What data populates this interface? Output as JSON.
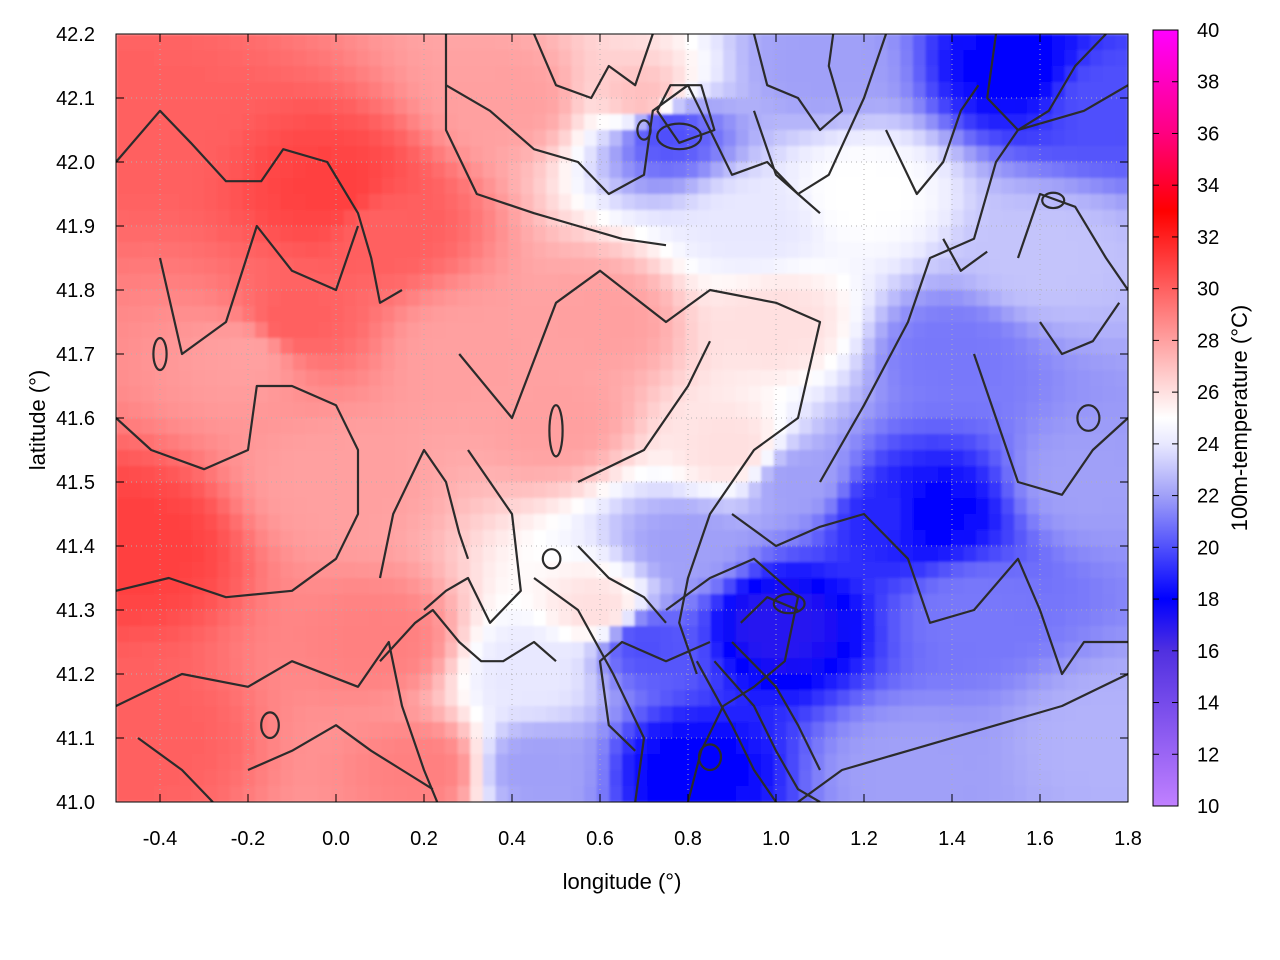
{
  "chart_data": {
    "type": "heatmap",
    "title": "",
    "xlabel": "longitude (°)",
    "ylabel": "latitude (°)",
    "colorbar_label": "100m-temperature (°C)",
    "xlim": [
      -0.5,
      1.8
    ],
    "ylim": [
      41.0,
      42.2
    ],
    "x_ticks": [
      "-0.4",
      "-0.2",
      "0.0",
      "0.2",
      "0.4",
      "0.6",
      "0.8",
      "1.0",
      "1.2",
      "1.4",
      "1.6",
      "1.8"
    ],
    "y_ticks": [
      "41.0",
      "41.1",
      "41.2",
      "41.3",
      "41.4",
      "41.5",
      "41.6",
      "41.7",
      "41.8",
      "41.9",
      "42.0",
      "42.1",
      "42.2"
    ],
    "colorbar_range": [
      10,
      40
    ],
    "colorbar_ticks": [
      "10",
      "12",
      "14",
      "16",
      "18",
      "20",
      "22",
      "24",
      "26",
      "28",
      "30",
      "32",
      "34",
      "36",
      "38",
      "40"
    ],
    "colormap": [
      {
        "value": 10,
        "color": "#c080ff"
      },
      {
        "value": 16,
        "color": "#5030e0"
      },
      {
        "value": 18,
        "color": "#0000ff"
      },
      {
        "value": 22,
        "color": "#a0a0f8"
      },
      {
        "value": 24,
        "color": "#e8e8ff"
      },
      {
        "value": 25,
        "color": "#ffffff"
      },
      {
        "value": 27,
        "color": "#ffc0c0"
      },
      {
        "value": 30,
        "color": "#ff6060"
      },
      {
        "value": 33,
        "color": "#ff0000"
      },
      {
        "value": 36,
        "color": "#ff0080"
      },
      {
        "value": 40,
        "color": "#ff00ff"
      }
    ],
    "temperature_anchors": [
      {
        "lon": -0.45,
        "lat": 42.05,
        "t": 30
      },
      {
        "lon": -0.45,
        "lat": 41.4,
        "t": 31
      },
      {
        "lon": -0.45,
        "lat": 41.1,
        "t": 30
      },
      {
        "lon": -0.2,
        "lat": 41.7,
        "t": 28
      },
      {
        "lon": -0.1,
        "lat": 41.75,
        "t": 30
      },
      {
        "lon": 0.0,
        "lat": 41.95,
        "t": 31
      },
      {
        "lon": 0.1,
        "lat": 41.9,
        "t": 30
      },
      {
        "lon": 0.0,
        "lat": 41.5,
        "t": 28
      },
      {
        "lon": 0.1,
        "lat": 41.25,
        "t": 29
      },
      {
        "lon": 0.2,
        "lat": 41.05,
        "t": 29
      },
      {
        "lon": 0.3,
        "lat": 41.7,
        "t": 28
      },
      {
        "lon": 0.4,
        "lat": 42.1,
        "t": 28
      },
      {
        "lon": 0.5,
        "lat": 41.6,
        "t": 28
      },
      {
        "lon": 0.45,
        "lat": 41.2,
        "t": 24
      },
      {
        "lon": 0.45,
        "lat": 41.05,
        "t": 22
      },
      {
        "lon": 0.6,
        "lat": 41.75,
        "t": 28
      },
      {
        "lon": 0.7,
        "lat": 42.1,
        "t": 27
      },
      {
        "lon": 0.75,
        "lat": 42.05,
        "t": 20
      },
      {
        "lon": 0.6,
        "lat": 41.3,
        "t": 26
      },
      {
        "lon": 0.7,
        "lat": 41.25,
        "t": 20
      },
      {
        "lon": 0.8,
        "lat": 41.4,
        "t": 22
      },
      {
        "lon": 0.8,
        "lat": 41.05,
        "t": 18
      },
      {
        "lon": 0.9,
        "lat": 41.55,
        "t": 26
      },
      {
        "lon": 0.95,
        "lat": 41.9,
        "t": 24
      },
      {
        "lon": 1.0,
        "lat": 41.28,
        "t": 17
      },
      {
        "lon": 1.0,
        "lat": 41.75,
        "t": 26
      },
      {
        "lon": 1.05,
        "lat": 41.5,
        "t": 22
      },
      {
        "lon": 1.1,
        "lat": 42.15,
        "t": 22
      },
      {
        "lon": 1.2,
        "lat": 41.95,
        "t": 25
      },
      {
        "lon": 1.25,
        "lat": 41.45,
        "t": 19
      },
      {
        "lon": 1.3,
        "lat": 41.05,
        "t": 22
      },
      {
        "lon": 1.35,
        "lat": 41.45,
        "t": 18
      },
      {
        "lon": 1.4,
        "lat": 41.7,
        "t": 21
      },
      {
        "lon": 1.45,
        "lat": 41.3,
        "t": 21
      },
      {
        "lon": 1.55,
        "lat": 42.15,
        "t": 18
      },
      {
        "lon": 1.6,
        "lat": 41.85,
        "t": 23
      },
      {
        "lon": 1.7,
        "lat": 41.5,
        "t": 22
      },
      {
        "lon": 1.75,
        "lat": 41.1,
        "t": 22.5
      },
      {
        "lon": 1.75,
        "lat": 42.1,
        "t": 20
      }
    ],
    "contours": [
      [
        [
          -0.5,
          42.0
        ],
        [
          -0.4,
          42.08
        ],
        [
          -0.33,
          42.03
        ],
        [
          -0.25,
          41.97
        ],
        [
          -0.17,
          41.97
        ],
        [
          -0.12,
          42.02
        ],
        [
          -0.02,
          42.0
        ],
        [
          0.05,
          41.92
        ],
        [
          0.08,
          41.85
        ],
        [
          0.1,
          41.78
        ],
        [
          0.15,
          41.8
        ]
      ],
      [
        [
          -0.5,
          41.6
        ],
        [
          -0.42,
          41.55
        ],
        [
          -0.3,
          41.52
        ],
        [
          -0.2,
          41.55
        ],
        [
          -0.18,
          41.65
        ],
        [
          -0.1,
          41.65
        ],
        [
          0.0,
          41.62
        ],
        [
          0.05,
          41.55
        ],
        [
          0.05,
          41.45
        ],
        [
          0.0,
          41.38
        ],
        [
          -0.1,
          41.33
        ],
        [
          -0.25,
          41.32
        ],
        [
          -0.38,
          41.35
        ],
        [
          -0.5,
          41.33
        ]
      ],
      [
        [
          -0.4,
          41.85
        ],
        [
          -0.35,
          41.7
        ],
        [
          -0.25,
          41.75
        ],
        [
          -0.18,
          41.9
        ],
        [
          -0.1,
          41.83
        ],
        [
          0.0,
          41.8
        ],
        [
          0.05,
          41.9
        ]
      ],
      [
        [
          -0.5,
          41.15
        ],
        [
          -0.35,
          41.2
        ],
        [
          -0.2,
          41.18
        ],
        [
          -0.1,
          41.22
        ],
        [
          0.05,
          41.18
        ],
        [
          0.12,
          41.25
        ],
        [
          0.15,
          41.15
        ],
        [
          0.2,
          41.05
        ],
        [
          0.23,
          41.0
        ]
      ],
      [
        [
          0.25,
          42.2
        ],
        [
          0.25,
          42.05
        ],
        [
          0.32,
          41.95
        ],
        [
          0.45,
          41.92
        ],
        [
          0.55,
          41.9
        ],
        [
          0.65,
          41.88
        ],
        [
          0.75,
          41.87
        ]
      ],
      [
        [
          0.28,
          41.7
        ],
        [
          0.4,
          41.6
        ],
        [
          0.5,
          41.78
        ],
        [
          0.6,
          41.83
        ],
        [
          0.75,
          41.75
        ],
        [
          0.85,
          41.8
        ],
        [
          1.0,
          41.78
        ],
        [
          1.1,
          41.75
        ],
        [
          1.05,
          41.6
        ],
        [
          0.95,
          41.55
        ],
        [
          0.85,
          41.45
        ],
        [
          0.8,
          41.35
        ],
        [
          0.78,
          41.28
        ],
        [
          0.82,
          41.2
        ]
      ],
      [
        [
          0.3,
          41.55
        ],
        [
          0.4,
          41.45
        ],
        [
          0.42,
          41.33
        ],
        [
          0.35,
          41.28
        ],
        [
          0.3,
          41.35
        ],
        [
          0.25,
          41.33
        ],
        [
          0.2,
          41.3
        ]
      ],
      [
        [
          0.45,
          41.35
        ],
        [
          0.55,
          41.3
        ],
        [
          0.63,
          41.2
        ],
        [
          0.7,
          41.1
        ],
        [
          0.68,
          41.0
        ]
      ],
      [
        [
          0.55,
          41.5
        ],
        [
          0.7,
          41.55
        ],
        [
          0.8,
          41.65
        ],
        [
          0.85,
          41.72
        ]
      ],
      [
        [
          0.9,
          41.45
        ],
        [
          1.0,
          41.4
        ],
        [
          1.1,
          41.43
        ],
        [
          1.2,
          41.45
        ],
        [
          1.3,
          41.38
        ],
        [
          1.35,
          41.28
        ],
        [
          1.45,
          41.3
        ],
        [
          1.55,
          41.38
        ],
        [
          1.6,
          41.3
        ],
        [
          1.65,
          41.2
        ],
        [
          1.7,
          41.25
        ],
        [
          1.8,
          41.25
        ]
      ],
      [
        [
          0.75,
          41.3
        ],
        [
          0.85,
          41.35
        ],
        [
          0.95,
          41.38
        ],
        [
          1.05,
          41.32
        ],
        [
          1.02,
          41.22
        ],
        [
          0.95,
          41.18
        ],
        [
          0.88,
          41.15
        ],
        [
          0.83,
          41.08
        ],
        [
          0.8,
          41.0
        ]
      ],
      [
        [
          0.92,
          41.28
        ],
        [
          0.98,
          41.32
        ],
        [
          1.05,
          41.3
        ]
      ],
      [
        [
          0.82,
          41.22
        ],
        [
          0.9,
          41.12
        ],
        [
          0.95,
          41.05
        ],
        [
          1.0,
          41.0
        ]
      ],
      [
        [
          0.86,
          41.22
        ],
        [
          0.95,
          41.15
        ],
        [
          1.0,
          41.08
        ],
        [
          1.05,
          41.02
        ],
        [
          1.1,
          41.0
        ]
      ],
      [
        [
          0.9,
          41.25
        ],
        [
          1.0,
          41.18
        ],
        [
          1.05,
          41.12
        ],
        [
          1.1,
          41.05
        ]
      ],
      [
        [
          1.05,
          41.0
        ],
        [
          1.15,
          41.05
        ],
        [
          1.3,
          41.08
        ],
        [
          1.5,
          41.12
        ],
        [
          1.65,
          41.15
        ],
        [
          1.8,
          41.2
        ]
      ],
      [
        [
          1.1,
          41.5
        ],
        [
          1.2,
          41.62
        ],
        [
          1.3,
          41.75
        ],
        [
          1.35,
          41.85
        ],
        [
          1.45,
          41.88
        ],
        [
          1.5,
          42.0
        ],
        [
          1.55,
          42.05
        ],
        [
          1.7,
          42.08
        ],
        [
          1.8,
          42.12
        ]
      ],
      [
        [
          1.45,
          41.7
        ],
        [
          1.5,
          41.6
        ],
        [
          1.55,
          41.5
        ],
        [
          1.65,
          41.48
        ],
        [
          1.72,
          41.55
        ],
        [
          1.8,
          41.6
        ]
      ],
      [
        [
          1.5,
          42.2
        ],
        [
          1.48,
          42.1
        ],
        [
          1.55,
          42.05
        ],
        [
          1.62,
          42.08
        ],
        [
          1.68,
          42.15
        ],
        [
          1.75,
          42.2
        ]
      ],
      [
        [
          1.55,
          41.85
        ],
        [
          1.6,
          41.95
        ],
        [
          1.68,
          41.93
        ],
        [
          1.75,
          41.85
        ],
        [
          1.8,
          41.8
        ]
      ],
      [
        [
          1.6,
          41.75
        ],
        [
          1.65,
          41.7
        ],
        [
          1.72,
          41.72
        ],
        [
          1.78,
          41.78
        ]
      ],
      [
        [
          0.25,
          42.12
        ],
        [
          0.35,
          42.08
        ],
        [
          0.45,
          42.02
        ],
        [
          0.55,
          42.0
        ],
        [
          0.62,
          41.95
        ],
        [
          0.7,
          41.98
        ],
        [
          0.72,
          42.08
        ],
        [
          0.8,
          42.12
        ],
        [
          0.85,
          42.05
        ],
        [
          0.9,
          41.98
        ],
        [
          0.98,
          42.0
        ],
        [
          1.05,
          41.95
        ],
        [
          1.1,
          41.92
        ]
      ],
      [
        [
          0.45,
          42.2
        ],
        [
          0.5,
          42.12
        ],
        [
          0.58,
          42.1
        ],
        [
          0.62,
          42.15
        ],
        [
          0.68,
          42.12
        ],
        [
          0.72,
          42.2
        ]
      ],
      [
        [
          0.73,
          42.08
        ],
        [
          0.78,
          42.03
        ],
        [
          0.86,
          42.05
        ],
        [
          0.83,
          42.12
        ],
        [
          0.76,
          42.12
        ],
        [
          0.73,
          42.08
        ]
      ],
      [
        [
          0.95,
          42.2
        ],
        [
          0.98,
          42.12
        ],
        [
          1.05,
          42.1
        ],
        [
          1.1,
          42.05
        ],
        [
          1.15,
          42.08
        ],
        [
          1.12,
          42.15
        ],
        [
          1.13,
          42.2
        ]
      ],
      [
        [
          0.95,
          42.08
        ],
        [
          1.0,
          41.98
        ],
        [
          1.05,
          41.95
        ],
        [
          1.12,
          41.98
        ],
        [
          1.2,
          42.1
        ],
        [
          1.25,
          42.2
        ]
      ],
      [
        [
          1.25,
          42.05
        ],
        [
          1.32,
          41.95
        ],
        [
          1.38,
          42.0
        ],
        [
          1.42,
          42.08
        ],
        [
          1.46,
          42.12
        ]
      ],
      [
        [
          1.38,
          41.88
        ],
        [
          1.42,
          41.83
        ],
        [
          1.48,
          41.86
        ]
      ],
      [
        [
          -0.2,
          41.05
        ],
        [
          -0.1,
          41.08
        ],
        [
          0.0,
          41.12
        ],
        [
          0.08,
          41.08
        ],
        [
          0.15,
          41.05
        ],
        [
          0.22,
          41.02
        ]
      ],
      [
        [
          0.1,
          41.22
        ],
        [
          0.18,
          41.28
        ],
        [
          0.22,
          41.3
        ],
        [
          0.28,
          41.25
        ],
        [
          0.33,
          41.22
        ],
        [
          0.38,
          41.22
        ],
        [
          0.45,
          41.25
        ],
        [
          0.5,
          41.22
        ]
      ],
      [
        [
          0.1,
          41.35
        ],
        [
          0.13,
          41.45
        ],
        [
          0.2,
          41.55
        ],
        [
          0.25,
          41.5
        ],
        [
          0.28,
          41.42
        ],
        [
          0.3,
          41.38
        ]
      ],
      [
        [
          -0.45,
          41.1
        ],
        [
          -0.35,
          41.05
        ],
        [
          -0.28,
          41.0
        ]
      ],
      [
        [
          0.55,
          41.4
        ],
        [
          0.62,
          41.35
        ],
        [
          0.7,
          41.32
        ],
        [
          0.75,
          41.28
        ]
      ],
      [
        [
          0.85,
          41.25
        ],
        [
          0.75,
          41.22
        ],
        [
          0.65,
          41.25
        ],
        [
          0.6,
          41.22
        ],
        [
          0.62,
          41.12
        ],
        [
          0.68,
          41.08
        ]
      ]
    ],
    "blobs": [
      {
        "lon": 0.78,
        "lat": 42.04,
        "rx": 0.05,
        "ry": 0.02
      },
      {
        "lon": 0.85,
        "lat": 41.07,
        "rx": 0.025,
        "ry": 0.02
      },
      {
        "lon": 1.03,
        "lat": 41.31,
        "rx": 0.035,
        "ry": 0.015
      },
      {
        "lon": 1.63,
        "lat": 41.94,
        "rx": 0.025,
        "ry": 0.012
      },
      {
        "lon": 0.5,
        "lat": 41.58,
        "rx": 0.015,
        "ry": 0.04
      },
      {
        "lon": 0.49,
        "lat": 41.38,
        "rx": 0.02,
        "ry": 0.015
      },
      {
        "lon": -0.15,
        "lat": 41.12,
        "rx": 0.02,
        "ry": 0.02
      },
      {
        "lon": -0.4,
        "lat": 41.7,
        "rx": 0.015,
        "ry": 0.025
      },
      {
        "lon": 0.7,
        "lat": 42.05,
        "rx": 0.015,
        "ry": 0.015
      },
      {
        "lon": 1.71,
        "lat": 41.6,
        "rx": 0.025,
        "ry": 0.02
      }
    ]
  }
}
